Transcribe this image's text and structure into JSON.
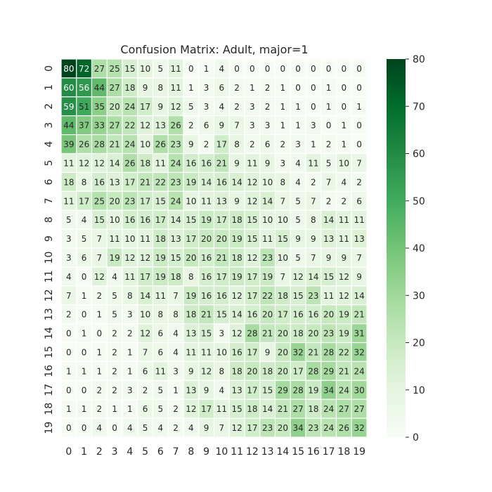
{
  "chart_data": {
    "type": "heatmap",
    "title": "Confusion Matrix: Adult, major=1",
    "xlabel": "",
    "ylabel": "",
    "x_categories": [
      "0",
      "1",
      "2",
      "3",
      "4",
      "5",
      "6",
      "7",
      "8",
      "9",
      "10",
      "11",
      "12",
      "13",
      "14",
      "15",
      "16",
      "17",
      "18",
      "19"
    ],
    "y_categories": [
      "0",
      "1",
      "2",
      "3",
      "4",
      "5",
      "6",
      "7",
      "8",
      "9",
      "10",
      "11",
      "12",
      "13",
      "14",
      "15",
      "16",
      "17",
      "18",
      "19"
    ],
    "matrix": [
      [
        80,
        72,
        27,
        25,
        15,
        10,
        5,
        11,
        0,
        1,
        4,
        0,
        0,
        0,
        0,
        0,
        0,
        0,
        0,
        0
      ],
      [
        60,
        56,
        44,
        27,
        18,
        9,
        8,
        11,
        1,
        3,
        6,
        2,
        1,
        2,
        1,
        0,
        0,
        1,
        0,
        0
      ],
      [
        59,
        51,
        35,
        20,
        24,
        17,
        9,
        12,
        5,
        3,
        4,
        2,
        3,
        2,
        1,
        1,
        0,
        1,
        0,
        1
      ],
      [
        44,
        37,
        33,
        27,
        22,
        12,
        13,
        26,
        2,
        6,
        9,
        7,
        3,
        3,
        1,
        1,
        3,
        0,
        1,
        0
      ],
      [
        39,
        26,
        28,
        21,
        24,
        10,
        26,
        23,
        9,
        2,
        17,
        8,
        2,
        6,
        2,
        3,
        1,
        2,
        1,
        0
      ],
      [
        11,
        12,
        12,
        14,
        26,
        18,
        11,
        24,
        16,
        16,
        21,
        9,
        11,
        9,
        3,
        4,
        11,
        5,
        10,
        7
      ],
      [
        18,
        8,
        16,
        13,
        17,
        21,
        22,
        23,
        19,
        14,
        16,
        14,
        12,
        10,
        8,
        4,
        2,
        7,
        4,
        2
      ],
      [
        11,
        17,
        25,
        20,
        23,
        17,
        15,
        24,
        10,
        11,
        13,
        9,
        12,
        14,
        7,
        5,
        7,
        2,
        2,
        6
      ],
      [
        5,
        4,
        15,
        10,
        16,
        16,
        17,
        14,
        15,
        19,
        17,
        18,
        15,
        10,
        10,
        5,
        8,
        14,
        11,
        11
      ],
      [
        3,
        5,
        7,
        11,
        10,
        11,
        18,
        13,
        17,
        20,
        20,
        19,
        15,
        11,
        15,
        9,
        9,
        13,
        11,
        13
      ],
      [
        3,
        6,
        7,
        19,
        12,
        12,
        19,
        15,
        20,
        16,
        21,
        18,
        12,
        23,
        10,
        5,
        7,
        9,
        9,
        7
      ],
      [
        4,
        0,
        12,
        4,
        11,
        17,
        19,
        18,
        8,
        16,
        17,
        19,
        17,
        19,
        7,
        12,
        14,
        15,
        12,
        9
      ],
      [
        7,
        1,
        2,
        5,
        8,
        14,
        11,
        7,
        19,
        16,
        16,
        12,
        17,
        22,
        18,
        15,
        23,
        11,
        12,
        14
      ],
      [
        2,
        0,
        1,
        5,
        3,
        10,
        8,
        8,
        18,
        21,
        15,
        14,
        16,
        20,
        17,
        16,
        16,
        20,
        19,
        21
      ],
      [
        0,
        1,
        0,
        2,
        2,
        12,
        6,
        4,
        13,
        15,
        3,
        12,
        28,
        21,
        20,
        18,
        20,
        23,
        19,
        31
      ],
      [
        0,
        0,
        1,
        2,
        1,
        7,
        6,
        4,
        11,
        11,
        10,
        16,
        17,
        9,
        20,
        32,
        21,
        28,
        22,
        32
      ],
      [
        1,
        1,
        1,
        2,
        1,
        6,
        11,
        3,
        9,
        12,
        8,
        18,
        20,
        18,
        20,
        17,
        28,
        29,
        21,
        24
      ],
      [
        0,
        0,
        2,
        2,
        3,
        2,
        5,
        1,
        13,
        9,
        4,
        13,
        17,
        15,
        29,
        28,
        19,
        34,
        24,
        30
      ],
      [
        1,
        1,
        2,
        1,
        1,
        6,
        5,
        2,
        12,
        17,
        11,
        15,
        18,
        14,
        21,
        27,
        18,
        24,
        27,
        27
      ],
      [
        0,
        0,
        4,
        0,
        4,
        5,
        4,
        2,
        4,
        9,
        7,
        12,
        17,
        23,
        20,
        34,
        23,
        24,
        26,
        32
      ]
    ],
    "vmin": 0,
    "vmax": 80,
    "colorbar_ticks": [
      0,
      10,
      20,
      30,
      40,
      50,
      60,
      70,
      80
    ],
    "colormap": "Greens",
    "grid": false,
    "legend": "colorbar-right"
  }
}
